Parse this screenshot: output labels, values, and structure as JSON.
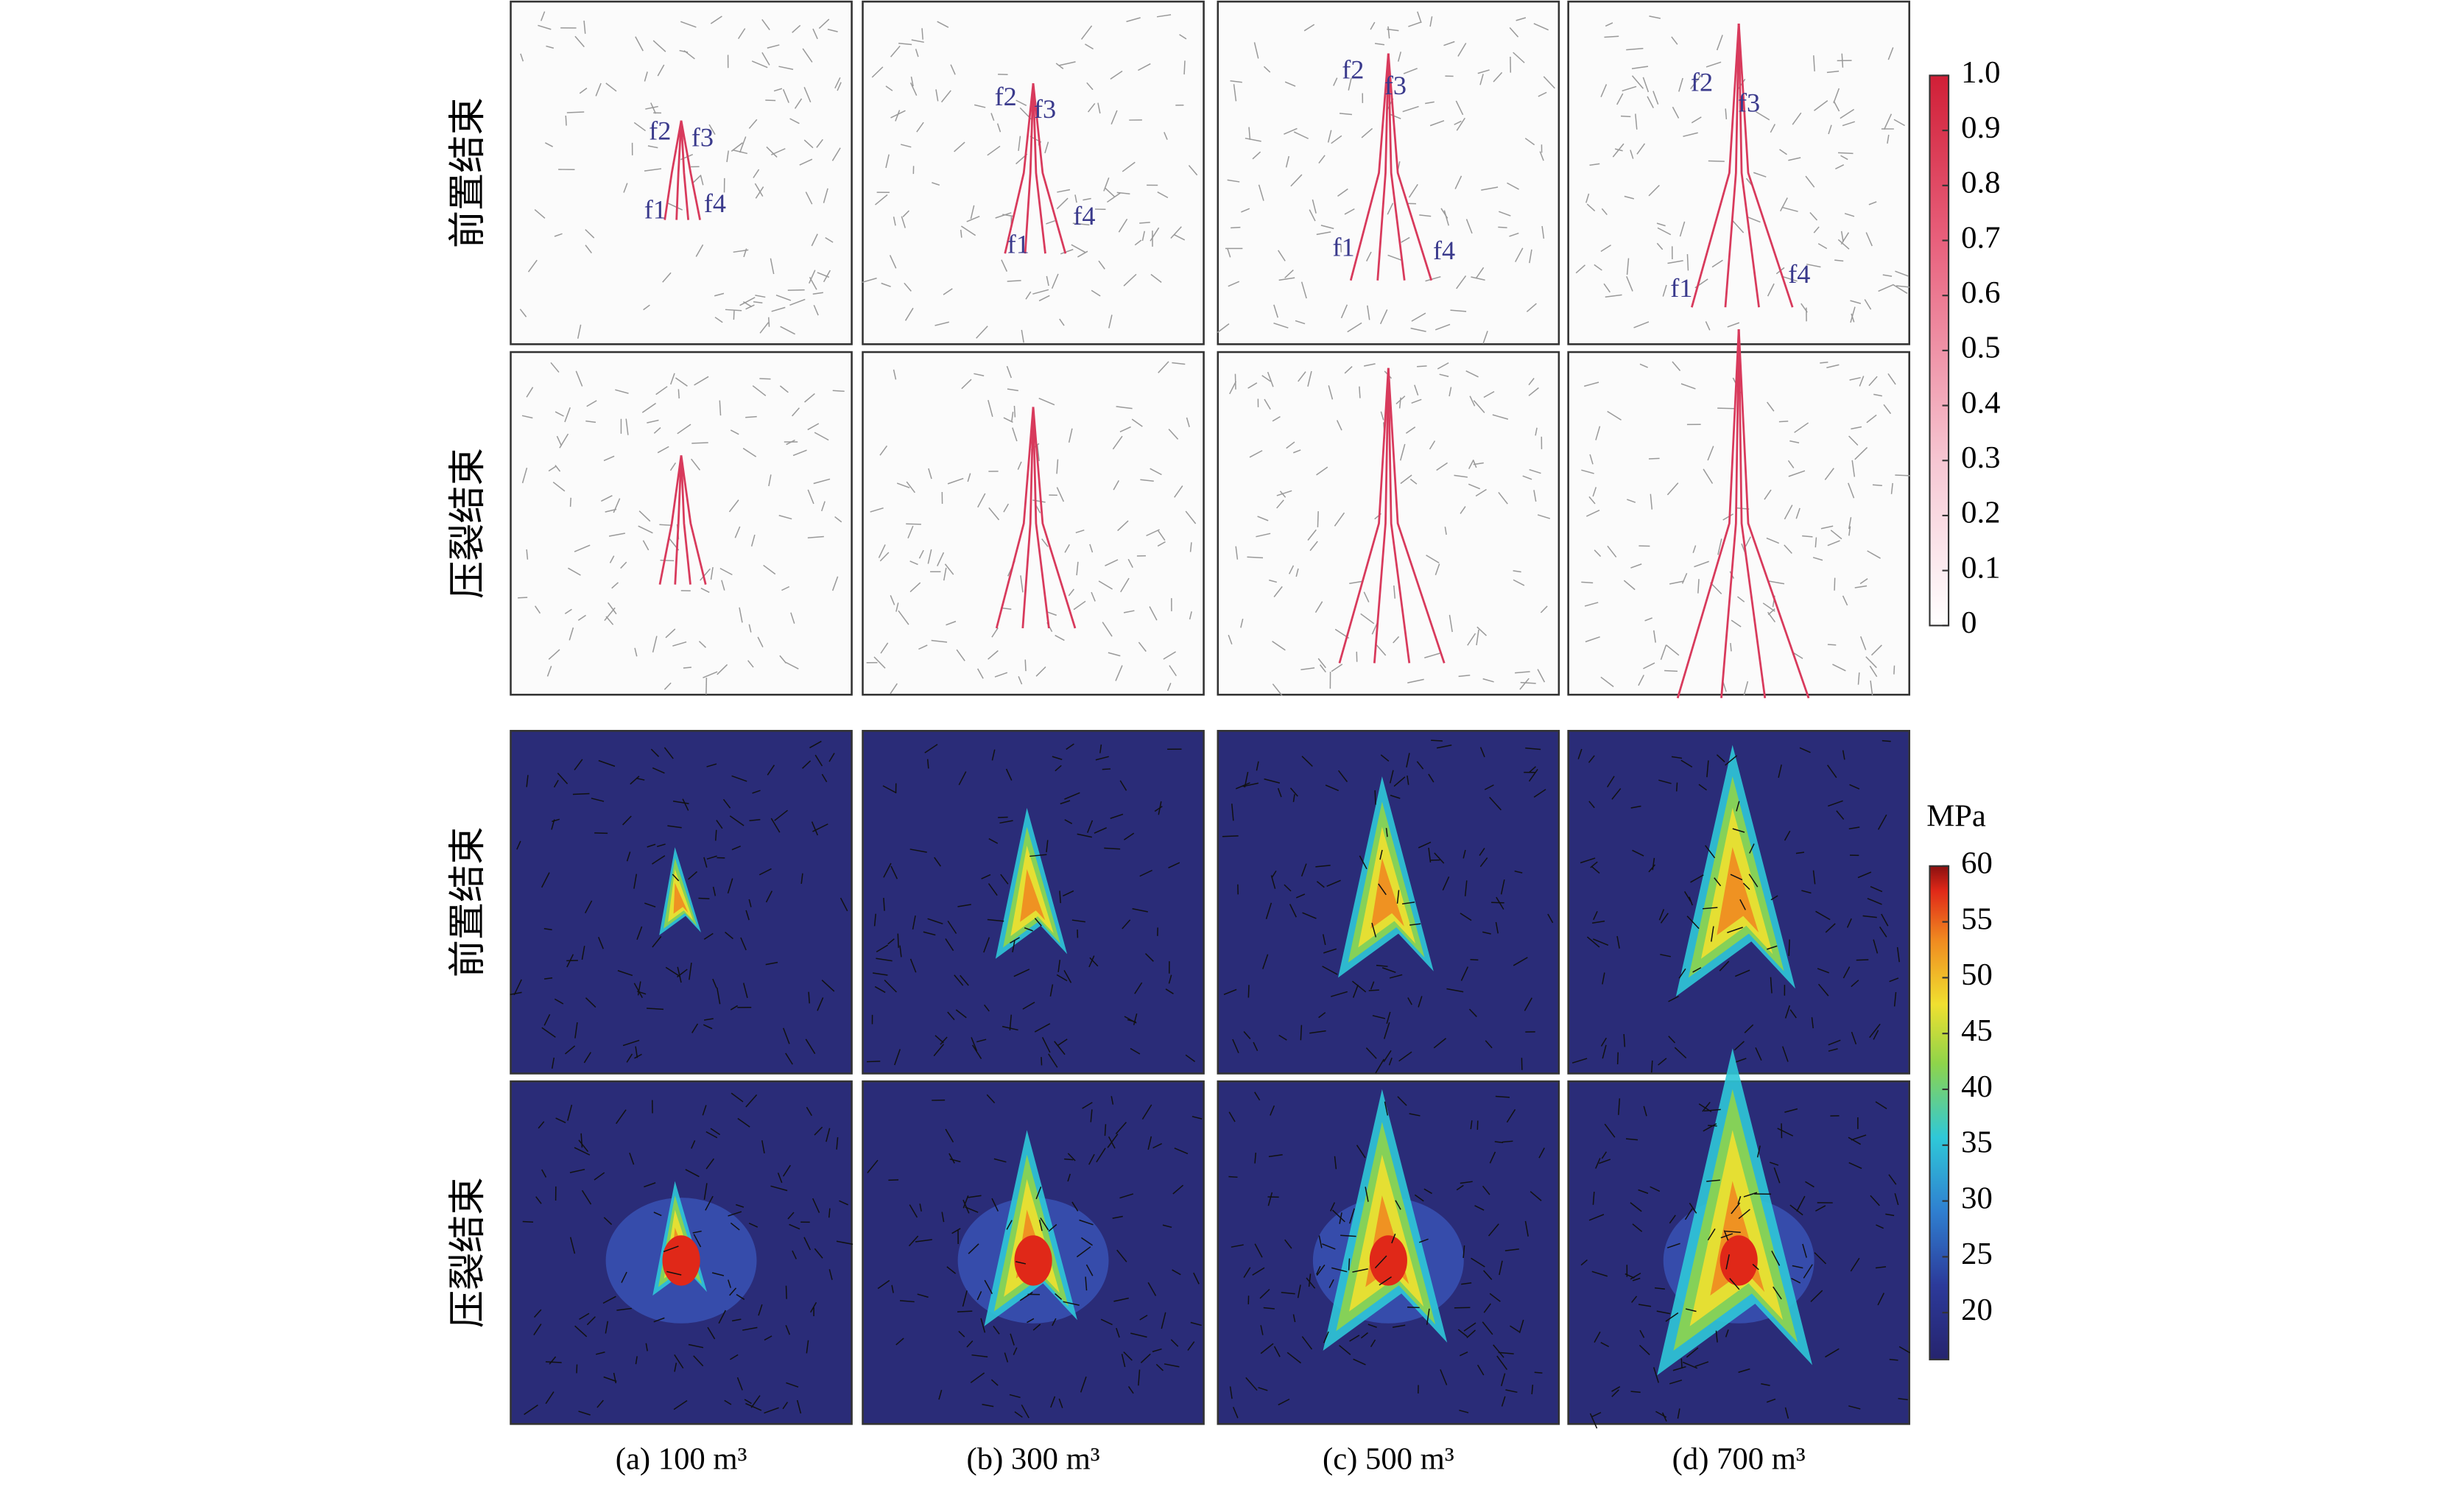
{
  "row_labels": [
    "前置结束",
    "压裂结束",
    "前置结束",
    "压裂结束"
  ],
  "column_labels": [
    "(a) 100 m³",
    "(b) 300 m³",
    "(c) 500 m³",
    "(d) 700 m³"
  ],
  "fracture_labels": [
    "f1",
    "f2",
    "f3",
    "f4"
  ],
  "colorbars": [
    {
      "ylim": [
        0,
        1
      ],
      "yticks": [
        {
          "value": 1,
          "label": "1.0"
        },
        0.9,
        0.8,
        0.7,
        0.6,
        0.5,
        0.4,
        0.3,
        0.2,
        0.1,
        0
      ]
    },
    {
      "title": "MPa",
      "ylim": [
        15.8,
        60
      ],
      "yticks": [
        60,
        55,
        50,
        45,
        40,
        35,
        30,
        25,
        20
      ]
    }
  ]
}
